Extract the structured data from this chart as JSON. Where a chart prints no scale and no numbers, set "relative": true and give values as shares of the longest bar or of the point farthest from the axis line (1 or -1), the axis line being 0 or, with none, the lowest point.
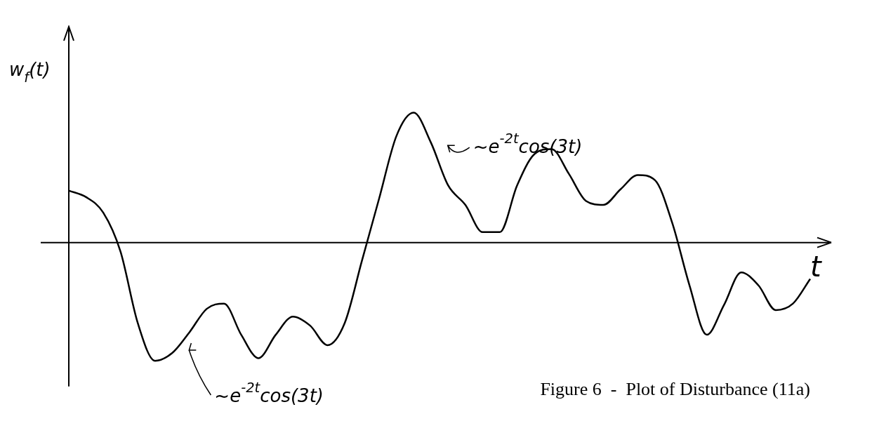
{
  "chart_data": {
    "type": "line",
    "title": "Figure 6  -  Plot of Disturbance (11a)",
    "xlabel": "t",
    "ylabel": "w$_{f}$(t)",
    "annotations": [
      "~e$^{-2t}$cos(3t)",
      "~e$^{-2t}$cos(3t)"
    ],
    "categories": [
      null,
      null,
      null,
      null,
      null,
      null,
      null,
      null,
      null,
      null,
      null,
      null,
      null,
      null,
      null,
      null,
      null,
      null,
      null,
      null,
      null,
      null,
      null,
      null,
      null,
      null,
      null,
      null,
      null,
      null,
      null,
      null,
      null,
      null,
      null,
      null,
      null,
      null,
      null,
      null,
      null,
      null,
      null,
      null
    ],
    "series": [
      {
        "color": "#000000",
        "values": [
          0.4,
          0.35,
          0.23,
          -0.07,
          -0.62,
          -0.91,
          -0.85,
          -0.69,
          -0.51,
          -0.47,
          -0.71,
          -0.89,
          -0.71,
          -0.57,
          -0.64,
          -0.79,
          -0.62,
          -0.14,
          0.34,
          0.82,
          1.0,
          0.77,
          0.44,
          0.29,
          0.08,
          0.08,
          0.44,
          0.68,
          0.72,
          0.53,
          0.32,
          0.29,
          0.41,
          0.52,
          0.48,
          0.15,
          -0.33,
          -0.71,
          -0.48,
          -0.23,
          -0.33,
          -0.52,
          -0.47,
          -0.28
        ]
      }
    ],
    "relative": true,
    "grid": false,
    "legend": false,
    "marker": "none",
    "line_style": "solid",
    "tick_labels": false
  }
}
